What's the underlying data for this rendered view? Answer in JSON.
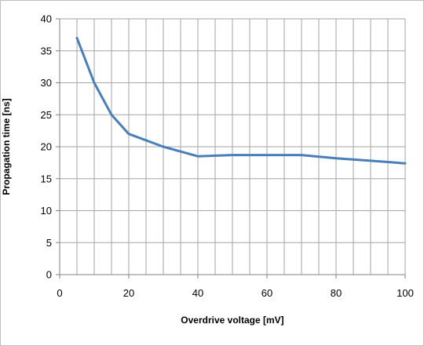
{
  "chart_data": {
    "type": "line",
    "title": "",
    "xlabel": "Overdrive voltage [mV]",
    "ylabel": "Propagation time [ns]",
    "xlim": [
      0,
      100
    ],
    "ylim": [
      0,
      40
    ],
    "x_ticks": [
      0,
      20,
      40,
      60,
      80,
      100
    ],
    "y_ticks": [
      0,
      5,
      10,
      15,
      20,
      25,
      30,
      35,
      40
    ],
    "x_minor_step": 5,
    "grid": true,
    "legend": "none",
    "series": [
      {
        "color": "#4a7ebb",
        "x": [
          5,
          10,
          15,
          20,
          30,
          40,
          50,
          60,
          70,
          80,
          90,
          100
        ],
        "y": [
          37,
          30,
          25,
          22,
          20,
          18.5,
          18.7,
          18.7,
          18.7,
          18.2,
          17.8,
          17.4
        ]
      }
    ]
  },
  "colors": {
    "grid": "#a6a6a6",
    "axis": "#808080",
    "frame": "#bfbfbf"
  }
}
